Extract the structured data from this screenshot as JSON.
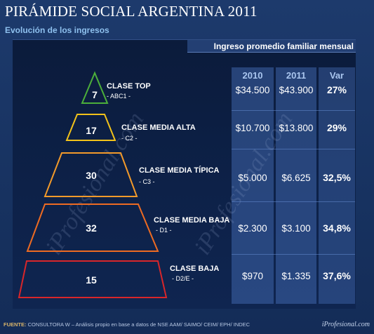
{
  "title": "PIRÁMIDE SOCIAL ARGENTINA 2011",
  "subtitle": "Evolución de los ingresos",
  "header": "Ingreso promedio familiar mensual",
  "columns": [
    "2010",
    "2011",
    "Var"
  ],
  "watermark": "iProfesional.com",
  "classes": [
    {
      "name": "CLASE TOP",
      "code": "- ABC1 -",
      "pct": "7",
      "v2010": "$34.500",
      "v2011": "$43.900",
      "var": "27%",
      "color": "#4caf3a"
    },
    {
      "name": "CLASE MEDIA ALTA",
      "code": "- C2 -",
      "pct": "17",
      "v2010": "$10.700",
      "v2011": "$13.800",
      "var": "29%",
      "color": "#f2c21a"
    },
    {
      "name": "CLASE MEDIA TÍPICA",
      "code": "- C3 -",
      "pct": "30",
      "v2010": "$5.000",
      "v2011": "$6.625",
      "var": "32,5%",
      "color": "#f39a2a"
    },
    {
      "name": "CLASE MEDIA BAJA",
      "code": "- D1 -",
      "pct": "32",
      "v2010": "$2.300",
      "v2011": "$3.100",
      "var": "34,8%",
      "color": "#ee6b22"
    },
    {
      "name": "CLASE BAJA",
      "code": "- D2/E -",
      "pct": "15",
      "v2010": "$970",
      "v2011": "$1.335",
      "var": "37,6%",
      "color": "#d8262a"
    }
  ],
  "footer_label": "FUENTE:",
  "footer_text": "CONSULTORA W – Análisis propio en base a datos de NSE AAM/ SAIMO/ CEIM/ EPH/ INDEC",
  "brand": "iProfesional.com"
}
